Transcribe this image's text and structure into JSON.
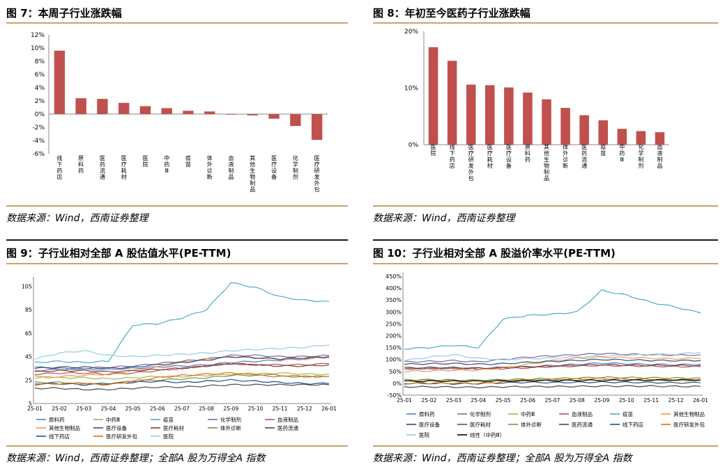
{
  "sources": {
    "fig7": "数据来源：Wind，西南证券整理",
    "fig8": "数据来源：Wind，西南证券整理",
    "fig9": "数据来源：Wind，西南证券整理；全部A 股为万得全A 指数",
    "fig10": "数据来源：Wind，西南证券整理；全部A 股为万得全A 指数"
  },
  "colors": {
    "bar": "#c0504d",
    "rule_top": "#1a1a1a",
    "rule_gold": "#c8a46a"
  },
  "chart_data": [
    {
      "id": "fig7",
      "type": "bar",
      "title": "图 7：本周子行业涨跌幅",
      "categories": [
        "线下药店",
        "原料药",
        "医药流通",
        "医疗耗材",
        "医院",
        "中药Ⅲ",
        "疫苗",
        "体外诊断",
        "血液制品",
        "其他生物制品",
        "医疗设备",
        "化学制剂",
        "医疗研发外包"
      ],
      "values": [
        9.6,
        2.4,
        2.3,
        1.7,
        1.2,
        0.9,
        0.5,
        0.4,
        0.0,
        -0.2,
        -0.7,
        -1.8,
        -3.9
      ],
      "yticks": [
        "12%",
        "10%",
        "8%",
        "6%",
        "4%",
        "2%",
        "0%",
        "-2%",
        "-4%",
        "-6%"
      ],
      "ylim": [
        -6,
        12
      ]
    },
    {
      "id": "fig8",
      "type": "bar",
      "title": "图 8：年初至今医药子行业涨跌幅",
      "categories": [
        "医院",
        "线下药店",
        "医疗研发外包",
        "医疗耗材",
        "医疗设备",
        "原料药",
        "其他生物制品",
        "体外诊断",
        "医药流通",
        "疫苗",
        "中药Ⅲ",
        "化学制剂",
        "血液制品"
      ],
      "values": [
        17.2,
        14.8,
        10.6,
        10.5,
        10.1,
        9.2,
        8.0,
        6.5,
        5.2,
        4.3,
        2.8,
        2.4,
        2.2
      ],
      "yticks": [
        "20%",
        "10%",
        "0%"
      ],
      "ylim": [
        0,
        20
      ]
    },
    {
      "id": "fig9",
      "type": "line",
      "title": "图 9：子行业相对全部 A 股估值水平(PE-TTM)",
      "x": [
        "25-01",
        "25-02",
        "25-03",
        "25-04",
        "25-05",
        "25-06",
        "25-07",
        "25-08",
        "25-09",
        "25-10",
        "25-11",
        "25-12",
        "26-01"
      ],
      "yticks": [
        "105",
        "85",
        "65",
        "45",
        "25",
        "5"
      ],
      "ylim": [
        5,
        110
      ],
      "series": [
        {
          "name": "原料药",
          "color": "#4f81bd",
          "values": [
            36,
            35,
            34,
            34,
            35,
            36,
            37,
            38,
            40,
            41,
            42,
            43,
            45
          ]
        },
        {
          "name": "中药Ⅲ",
          "color": "#9bbb59",
          "values": [
            28,
            27,
            27,
            26,
            27,
            28,
            28,
            29,
            30,
            30,
            31,
            30,
            30
          ]
        },
        {
          "name": "疫苗",
          "color": "#4bacc6",
          "values": [
            40,
            41,
            40,
            41,
            72,
            73,
            78,
            85,
            108,
            104,
            96,
            93,
            92
          ]
        },
        {
          "name": "化学制剂",
          "color": "#8064a2",
          "values": [
            33,
            34,
            35,
            36,
            37,
            39,
            41,
            43,
            46,
            46,
            45,
            45,
            46
          ]
        },
        {
          "name": "血液制品",
          "color": "#c0504d",
          "values": [
            30,
            31,
            31,
            30,
            31,
            33,
            35,
            37,
            39,
            38,
            38,
            38,
            39
          ]
        },
        {
          "name": "其他生物制品",
          "color": "#f79646",
          "values": [
            27,
            28,
            29,
            30,
            33,
            36,
            40,
            43,
            45,
            44,
            43,
            43,
            44
          ]
        },
        {
          "name": "医疗设备",
          "color": "#2c4d75",
          "values": [
            35,
            36,
            36,
            35,
            36,
            38,
            40,
            42,
            45,
            44,
            43,
            44,
            45
          ]
        },
        {
          "name": "医疗耗材",
          "color": "#7f3f3f",
          "values": [
            32,
            33,
            33,
            32,
            33,
            34,
            35,
            37,
            39,
            38,
            37,
            37,
            38
          ]
        },
        {
          "name": "体外诊断",
          "color": "#77933c",
          "values": [
            23,
            23,
            22,
            22,
            24,
            25,
            26,
            27,
            29,
            29,
            28,
            28,
            28
          ]
        },
        {
          "name": "医药流通",
          "color": "#494949",
          "values": [
            18,
            18,
            17,
            17,
            18,
            19,
            19,
            20,
            21,
            21,
            21,
            21,
            21
          ]
        },
        {
          "name": "线下药店",
          "color": "#1f4e8c",
          "values": [
            22,
            22,
            21,
            22,
            23,
            24,
            23,
            24,
            25,
            24,
            23,
            22,
            22
          ]
        },
        {
          "name": "医疗研发外包",
          "color": "#e46c0a",
          "values": [
            21,
            22,
            22,
            21,
            24,
            27,
            29,
            30,
            31,
            30,
            29,
            28,
            28
          ]
        },
        {
          "name": "医院",
          "color": "#93cddd",
          "values": [
            43,
            48,
            50,
            46,
            45,
            46,
            47,
            48,
            50,
            51,
            52,
            53,
            55
          ]
        }
      ]
    },
    {
      "id": "fig10",
      "type": "line",
      "title": "图 10：子行业相对全部 A 股溢价率水平(PE-TTM)",
      "x": [
        "25-01",
        "25-02",
        "25-03",
        "25-04",
        "25-05",
        "25-06",
        "25-07",
        "25-08",
        "25-09",
        "25-10",
        "25-11",
        "25-12",
        "26-01"
      ],
      "yticks": [
        "450%",
        "400%",
        "350%",
        "300%",
        "250%",
        "200%",
        "150%",
        "100%",
        "50%",
        "0%",
        "-50%"
      ],
      "ylim": [
        -50,
        450
      ],
      "series": [
        {
          "name": "原料药",
          "color": "#4f81bd",
          "values": [
            60,
            62,
            63,
            62,
            65,
            70,
            75,
            80,
            85,
            82,
            80,
            78,
            80
          ]
        },
        {
          "name": "化学制剂",
          "color": "#8064a2",
          "values": [
            90,
            92,
            95,
            90,
            100,
            110,
            115,
            120,
            125,
            122,
            120,
            118,
            120
          ]
        },
        {
          "name": "中药Ⅲ",
          "color": "#9bbb59",
          "values": [
            10,
            12,
            10,
            8,
            10,
            12,
            14,
            15,
            15,
            14,
            13,
            12,
            12
          ]
        },
        {
          "name": "血液制品",
          "color": "#c0504d",
          "values": [
            60,
            62,
            63,
            60,
            62,
            65,
            70,
            72,
            75,
            73,
            72,
            70,
            70
          ]
        },
        {
          "name": "疫苗",
          "color": "#4bacc6",
          "values": [
            145,
            150,
            160,
            150,
            270,
            285,
            290,
            300,
            390,
            370,
            340,
            320,
            295
          ]
        },
        {
          "name": "其他生物制品",
          "color": "#f79646",
          "values": [
            50,
            52,
            55,
            55,
            65,
            80,
            95,
            105,
            110,
            108,
            105,
            103,
            105
          ]
        },
        {
          "name": "医疗设备",
          "color": "#2c4d75",
          "values": [
            80,
            82,
            83,
            80,
            82,
            88,
            92,
            96,
            100,
            98,
            96,
            95,
            96
          ]
        },
        {
          "name": "医疗耗材",
          "color": "#7f3f3f",
          "values": [
            65,
            66,
            66,
            64,
            66,
            68,
            72,
            75,
            78,
            76,
            75,
            74,
            75
          ]
        },
        {
          "name": "体外诊断",
          "color": "#77933c",
          "values": [
            15,
            15,
            14,
            12,
            15,
            18,
            20,
            22,
            25,
            24,
            23,
            22,
            22
          ]
        },
        {
          "name": "医药流通",
          "color": "#494949",
          "values": [
            -15,
            -15,
            -16,
            -17,
            -15,
            -14,
            -14,
            -13,
            -12,
            -12,
            -12,
            -13,
            -13
          ]
        },
        {
          "name": "线下药店",
          "color": "#1f4e8c",
          "values": [
            0,
            0,
            -2,
            -1,
            2,
            4,
            3,
            4,
            5,
            4,
            3,
            2,
            2
          ]
        },
        {
          "name": "医疗研发外包",
          "color": "#e46c0a",
          "values": [
            -2,
            0,
            1,
            -1,
            6,
            12,
            15,
            18,
            20,
            18,
            16,
            14,
            14
          ]
        },
        {
          "name": "医院",
          "color": "#93cddd",
          "values": [
            95,
            110,
            120,
            105,
            100,
            103,
            106,
            110,
            115,
            118,
            120,
            122,
            130
          ]
        },
        {
          "name": "线性（中药Ⅲ）",
          "color": "#000000",
          "values": [
            8,
            9,
            9,
            10,
            10,
            11,
            11,
            12,
            12,
            13,
            13,
            14,
            14
          ]
        }
      ]
    }
  ]
}
